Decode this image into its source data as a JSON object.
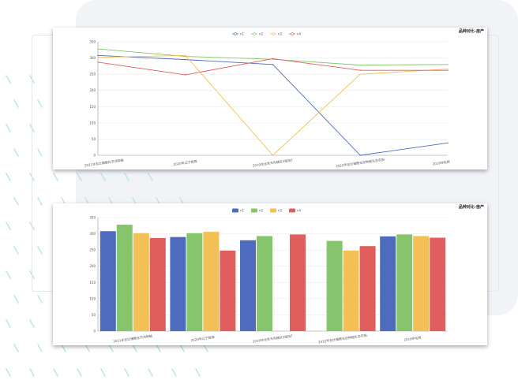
{
  "chart_data": [
    {
      "type": "line",
      "title": "品种对比-亩产",
      "categories": [
        "2021年吉比镇散化节活种植",
        "2020年辽宁郎郭",
        "2019年北京市沟镇区5亩田7",
        "2022年吉比镇散化宗种植生态农田",
        "2018年哈郎"
      ],
      "ylim": [
        0,
        350
      ],
      "yticks": [
        0,
        50,
        100,
        150,
        200,
        250,
        300,
        350
      ],
      "legend_position": "top-center",
      "grid": true,
      "series": [
        {
          "name": "n1",
          "color": "#4e6bbd",
          "values": [
            308,
            295,
            280,
            0,
            38
          ]
        },
        {
          "name": "n2",
          "color": "#86c56b",
          "values": [
            328,
            305,
            296,
            278,
            280
          ]
        },
        {
          "name": "n3",
          "color": "#f3c056",
          "values": [
            302,
            308,
            0,
            250,
            266
          ]
        },
        {
          "name": "n4",
          "color": "#e15e5e",
          "values": [
            287,
            248,
            298,
            262,
            262
          ]
        }
      ]
    },
    {
      "type": "bar",
      "title": "品种对比-亩产",
      "categories": [
        "2021年吉比镇散化节活种植",
        "2020年辽宁郎郭",
        "2019年北京市沟镇区5亩田7",
        "2022年吉比镇散化宗种植生态农田",
        "2018年哈郎"
      ],
      "ylim": [
        0,
        350
      ],
      "yticks": [
        0,
        50,
        100,
        150,
        200,
        250,
        300,
        350
      ],
      "legend_position": "top-center",
      "grid": true,
      "series": [
        {
          "name": "n1",
          "color": "#4e6bbd",
          "values": [
            308,
            290,
            280,
            null,
            292
          ]
        },
        {
          "name": "n2",
          "color": "#86c56b",
          "values": [
            328,
            302,
            293,
            278,
            298
          ]
        },
        {
          "name": "n3",
          "color": "#f3c056",
          "values": [
            302,
            306,
            null,
            248,
            293
          ]
        },
        {
          "name": "n4",
          "color": "#e15e5e",
          "values": [
            287,
            248,
            298,
            262,
            288
          ]
        }
      ]
    }
  ]
}
